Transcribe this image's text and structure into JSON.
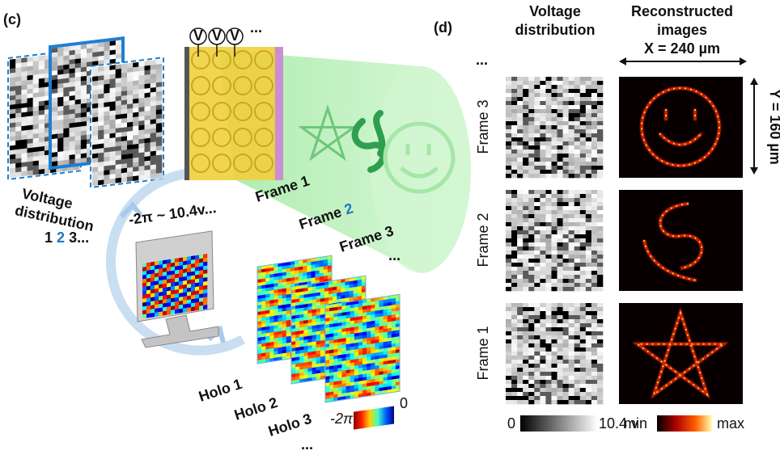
{
  "panel_c": {
    "label": "(c)",
    "voltmeters": [
      "V",
      "V",
      "V"
    ],
    "voltmeters_more": "...",
    "voltage_distribution": {
      "title": [
        "Voltage",
        "distribution"
      ],
      "sequence": [
        "1",
        "2",
        "3..."
      ]
    },
    "voltage_range": "-2π ~ 10.4v...",
    "frames": [
      {
        "label": "Frame",
        "number": "1"
      },
      {
        "label": "Frame",
        "number": "2"
      },
      {
        "label": "Frame",
        "number": "3"
      }
    ],
    "frames_more": "...",
    "holograms": [
      "Holo 1",
      "Holo 2",
      "Holo 3"
    ],
    "holograms_more": "...",
    "phase_colorbar": {
      "min": "-2π",
      "max": "0"
    }
  },
  "panel_d": {
    "label": "(d)",
    "columns": [
      [
        "Voltage",
        "distribution"
      ],
      [
        "Reconstructed",
        "images"
      ]
    ],
    "rows_more": "...",
    "rows": [
      "Frame 3",
      "Frame 2",
      "Frame 1"
    ],
    "x_size": "X = 240 µm",
    "y_size": "Y = 160 µm",
    "voltage_colorbar": {
      "min": "0",
      "max": "10.4 v"
    },
    "intensity_colorbar": {
      "min": "min",
      "max": "max"
    }
  }
}
